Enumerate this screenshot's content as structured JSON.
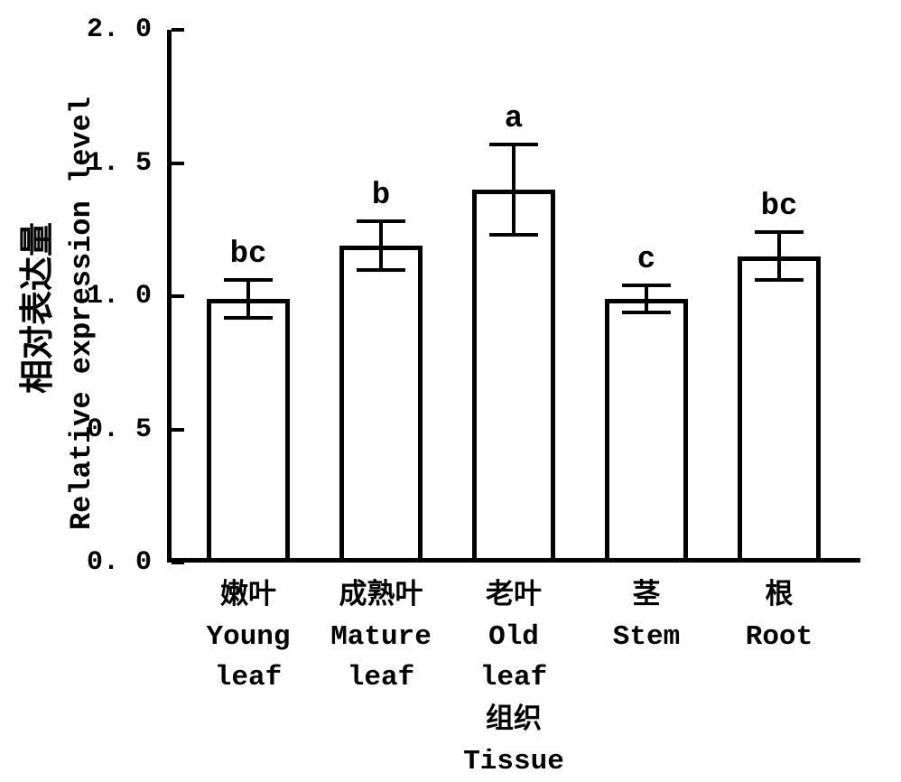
{
  "chart_data": {
    "type": "bar",
    "ylabel_zh": "相对表达量",
    "ylabel_en": "Relative expression level",
    "xlabel_zh": "组织",
    "xlabel_en": "Tissue",
    "ylim": [
      0.0,
      2.0
    ],
    "yticks": [
      0.0,
      0.5,
      1.0,
      1.5,
      2.0
    ],
    "ytick_labels": [
      "0. 0",
      "0. 5",
      "1. 0",
      "1. 5",
      "2. 0"
    ],
    "categories": [
      [
        "嫩叶",
        "Young",
        "leaf"
      ],
      [
        "成熟叶",
        "Mature",
        "leaf"
      ],
      [
        "老叶",
        "Old",
        "leaf"
      ],
      [
        "茎",
        "Stem"
      ],
      [
        "根",
        "Root"
      ]
    ],
    "values": [
      0.99,
      1.19,
      1.4,
      0.99,
      1.15
    ],
    "errors": [
      0.07,
      0.09,
      0.17,
      0.05,
      0.09
    ],
    "sig_letters": [
      "bc",
      "b",
      "a",
      "c",
      "bc"
    ],
    "grid": false,
    "legend": "none",
    "colors": {
      "bar_fill": "#ffffff",
      "bar_border": "#000000",
      "axis": "#000000",
      "text": "#000000",
      "background": "#ffffff"
    }
  }
}
